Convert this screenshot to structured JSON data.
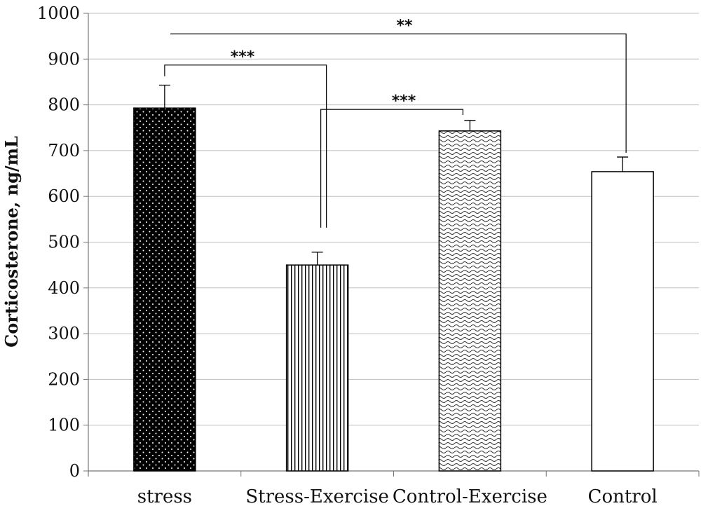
{
  "chart_data": {
    "type": "bar",
    "title": "",
    "xlabel": "",
    "ylabel": "Corticosterone, ng/mL",
    "ylim": [
      0,
      1000
    ],
    "yticks": [
      0,
      100,
      200,
      300,
      400,
      500,
      600,
      700,
      800,
      900,
      1000
    ],
    "grid": true,
    "categories": [
      "stress",
      "Stress-Exercise",
      "Control-Exercise",
      "Control"
    ],
    "values": [
      793,
      450,
      743,
      654
    ],
    "error_bars": [
      50,
      28,
      23,
      32
    ],
    "bar_patterns": [
      "black-dotted",
      "vertical-lines",
      "wavy",
      "white"
    ],
    "significance": [
      {
        "from": "stress",
        "to": "Control",
        "label": "**"
      },
      {
        "from": "stress",
        "to": "Stress-Exercise",
        "label": "***"
      },
      {
        "from": "Stress-Exercise",
        "to": "Control-Exercise",
        "label": "***"
      }
    ],
    "colors": {
      "grid": "#bfbfbf",
      "axis": "#777777",
      "bar_outline": "#000000"
    }
  }
}
